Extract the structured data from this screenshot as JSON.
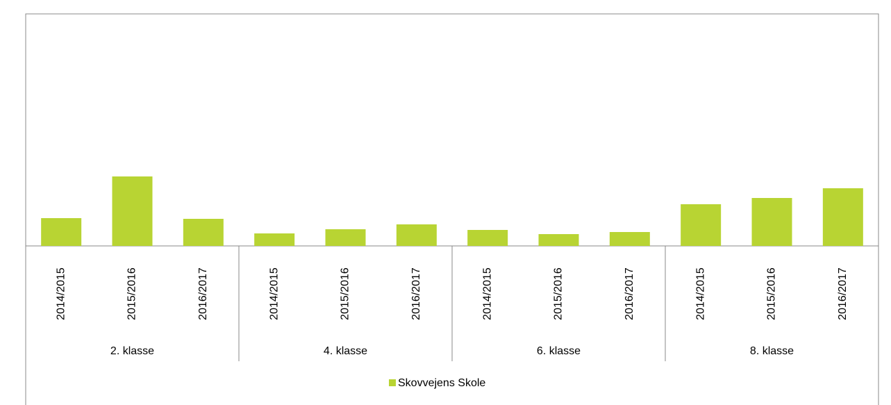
{
  "chart_data": {
    "type": "bar",
    "categories": [
      "2014/2015",
      "2015/2016",
      "2016/2017",
      "2014/2015",
      "2015/2016",
      "2016/2017",
      "2014/2015",
      "2015/2016",
      "2016/2017",
      "2014/2015",
      "2015/2016",
      "2016/2017"
    ],
    "groups": [
      "2. klasse",
      "4. klasse",
      "6. klasse",
      "8. klasse"
    ],
    "series": [
      {
        "name": "Skovvejens Skole",
        "color": "#b8d433",
        "values": [
          40,
          100,
          39,
          18,
          24,
          31,
          23,
          17,
          20,
          60,
          69,
          83
        ]
      }
    ],
    "ylim": [
      0,
      324
    ],
    "legend": "bottom"
  }
}
